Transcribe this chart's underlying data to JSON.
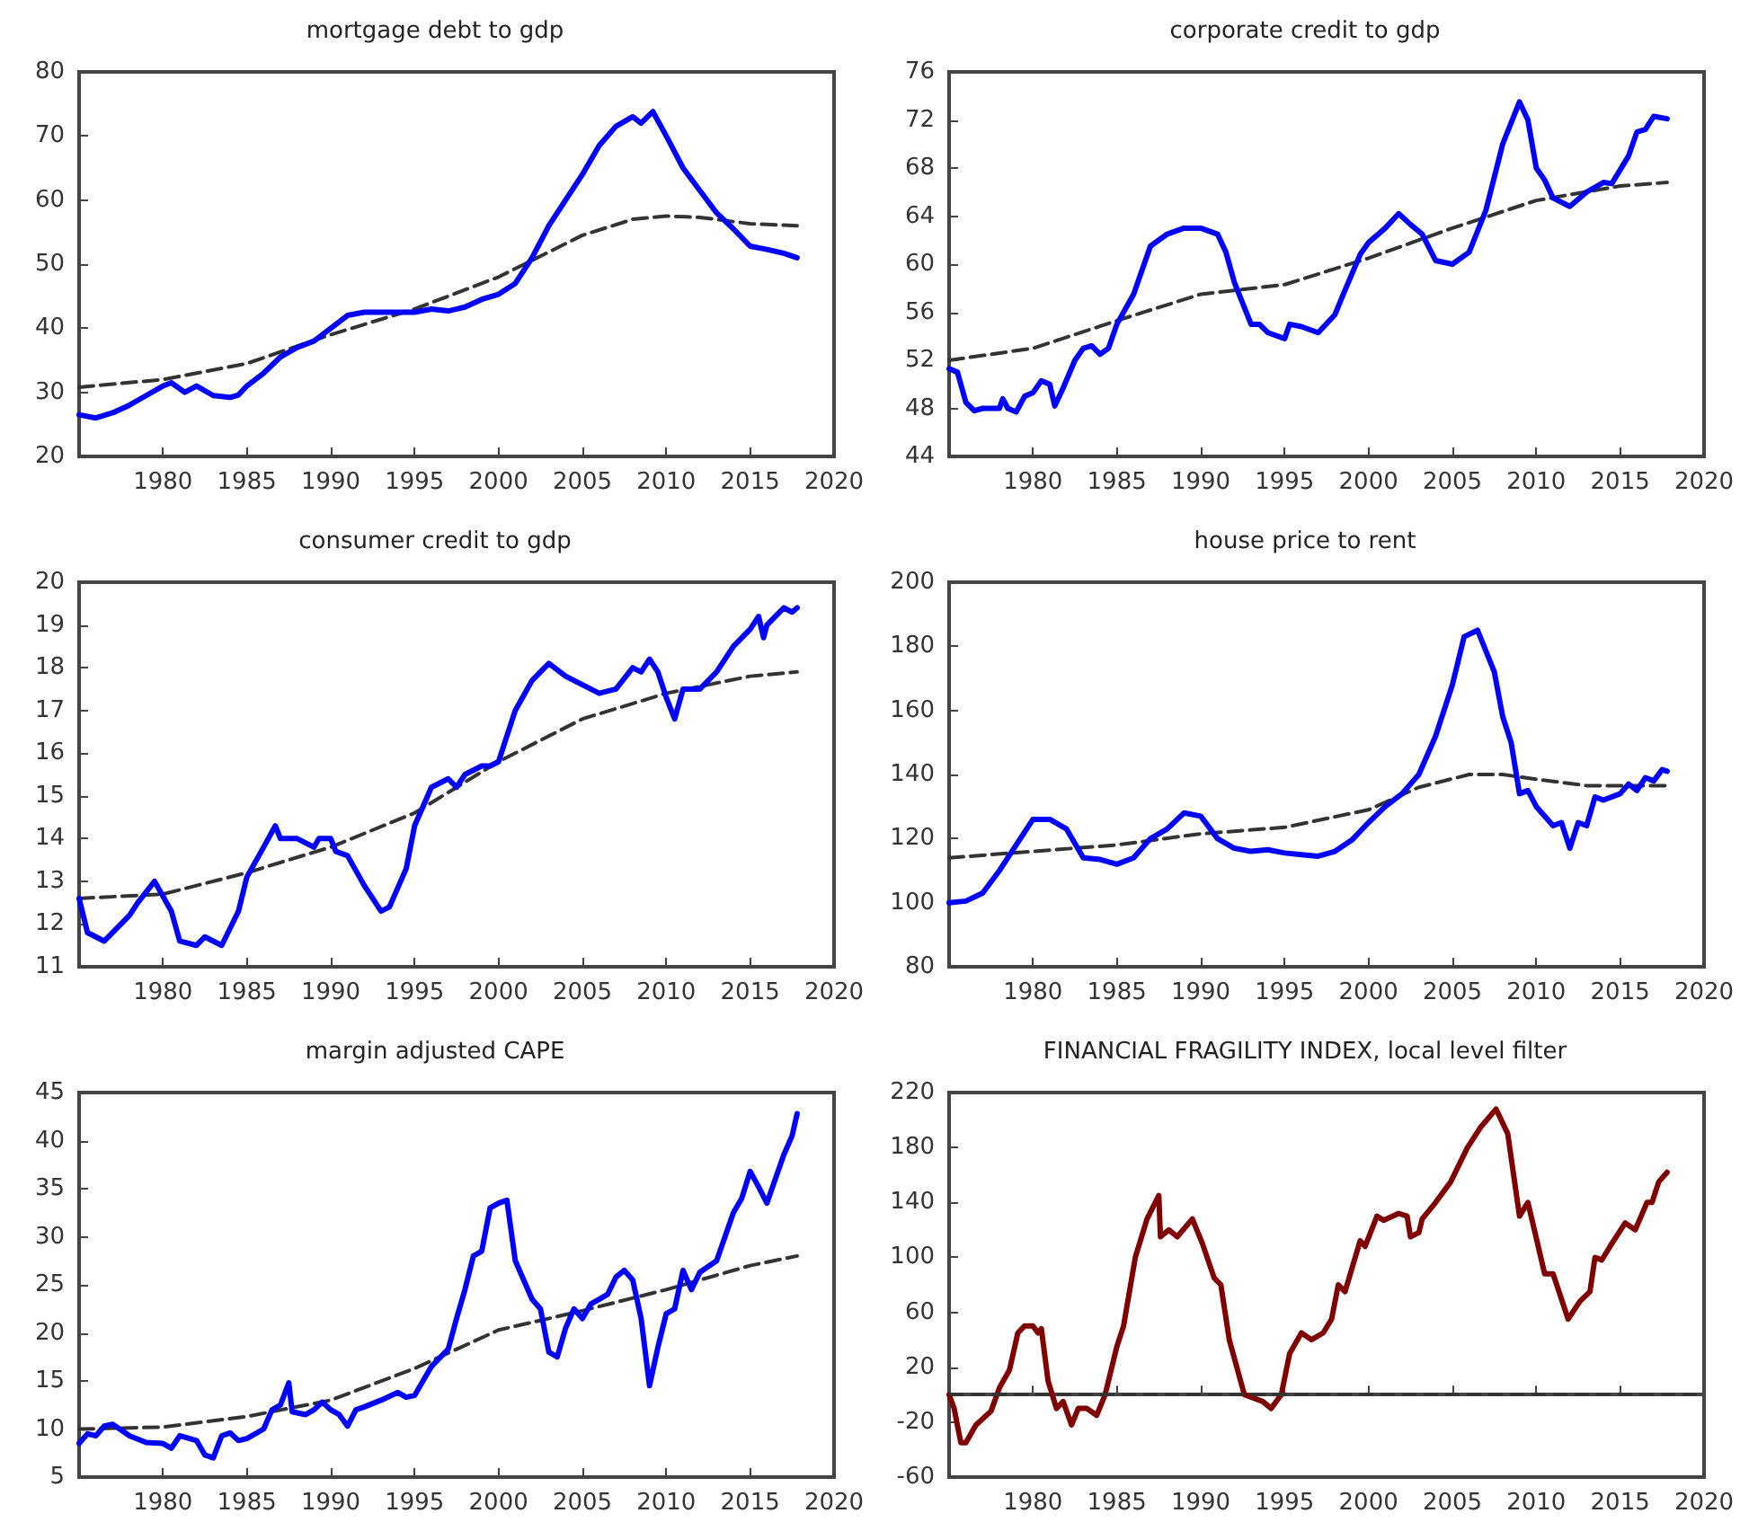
{
  "chart_data": [
    {
      "type": "line",
      "title": "mortgage debt to gdp",
      "xlim": [
        1975,
        2020
      ],
      "xticks": [
        1980,
        1985,
        1990,
        1995,
        2000,
        2005,
        2010,
        2015,
        2020
      ],
      "ylim": [
        20,
        80
      ],
      "yticks": [
        20,
        30,
        40,
        50,
        60,
        70,
        80
      ],
      "marker": "none",
      "series": [
        {
          "color": "#0000ff",
          "line_style": "solid",
          "x": [
            1975,
            1976,
            1977,
            1978,
            1979,
            1980,
            1980.5,
            1981.3,
            1982,
            1983,
            1984,
            1984.5,
            1985,
            1986,
            1987,
            1988,
            1989,
            1990,
            1991,
            1992,
            1993,
            1994,
            1995,
            1996,
            1997,
            1998,
            1999,
            2000,
            2001,
            2002,
            2003,
            2004,
            2005,
            2006,
            2007,
            2008,
            2008.5,
            2009.2,
            2010,
            2011,
            2012,
            2013,
            2014,
            2015,
            2016,
            2017,
            2017.8
          ],
          "values": [
            26.5,
            26,
            26.8,
            28,
            29.5,
            31,
            31.5,
            30,
            31,
            29.5,
            29.2,
            29.6,
            31,
            33,
            35.5,
            37,
            38,
            40,
            42,
            42.5,
            42.5,
            42.5,
            42.5,
            43,
            42.7,
            43.3,
            44.5,
            45.3,
            47,
            51,
            56,
            60,
            64,
            68.5,
            71.5,
            73,
            72,
            73.8,
            70,
            65,
            61.5,
            58,
            55.5,
            52.8,
            52.3,
            51.7,
            51
          ]
        },
        {
          "color": "#333333",
          "line_style": "dashed",
          "x": [
            1975,
            1980,
            1985,
            1990,
            1995,
            2000,
            2005,
            2008,
            2010,
            2012,
            2015,
            2017.8
          ],
          "values": [
            30.8,
            32,
            34.5,
            39,
            43,
            48,
            54.5,
            57,
            57.5,
            57.3,
            56.3,
            56
          ]
        }
      ]
    },
    {
      "type": "line",
      "title": "corporate credit to gdp",
      "xlim": [
        1975,
        2020
      ],
      "xticks": [
        1980,
        1985,
        1990,
        1995,
        2000,
        2005,
        2010,
        2015,
        2020
      ],
      "ylim": [
        44,
        76
      ],
      "yticks": [
        44,
        48,
        52,
        56,
        60,
        64,
        68,
        72,
        76
      ],
      "marker": "none",
      "series": [
        {
          "color": "#0000ff",
          "line_style": "solid",
          "x": [
            1975,
            1975.5,
            1976,
            1976.5,
            1977,
            1978,
            1978.2,
            1978.5,
            1979,
            1979.5,
            1980,
            1980.5,
            1981,
            1981.3,
            1981.8,
            1982.5,
            1983,
            1983.5,
            1984,
            1984.5,
            1985,
            1986,
            1987,
            1987.5,
            1988,
            1989,
            1990,
            1991,
            1991.5,
            1992,
            1993,
            1993.5,
            1994,
            1995,
            1995.3,
            1996,
            1997,
            1998,
            1998.5,
            1999.5,
            2000,
            2001,
            2001.8,
            2002.5,
            2003.2,
            2004,
            2005,
            2006,
            2007,
            2008,
            2009,
            2009.5,
            2010,
            2010.5,
            2011,
            2012,
            2013,
            2014,
            2014.5,
            2015.5,
            2016,
            2016.5,
            2017,
            2017.8
          ],
          "values": [
            51.3,
            51,
            48.5,
            47.8,
            48,
            48,
            48.8,
            48,
            47.7,
            49,
            49.3,
            50.3,
            50,
            48.2,
            49.7,
            52,
            53,
            53.2,
            52.5,
            53,
            55,
            57.5,
            61.5,
            62,
            62.5,
            63,
            63,
            62.5,
            61,
            58.5,
            55,
            55,
            54.3,
            53.8,
            55,
            54.8,
            54.3,
            55.8,
            57.5,
            60.8,
            61.8,
            63,
            64.2,
            63.3,
            62.5,
            60.3,
            60,
            61,
            64.5,
            70,
            73.5,
            72,
            68,
            67,
            65.5,
            64.8,
            66,
            66.8,
            66.7,
            69,
            71,
            71.2,
            72.3,
            72.1
          ]
        },
        {
          "color": "#333333",
          "line_style": "dashed",
          "x": [
            1975,
            1980,
            1985,
            1990,
            1995,
            2000,
            2005,
            2010,
            2015,
            2017.8
          ],
          "values": [
            52,
            53,
            55.3,
            57.5,
            58.3,
            60.5,
            63,
            65.3,
            66.5,
            66.8
          ]
        }
      ]
    },
    {
      "type": "line",
      "title": "consumer credit to gdp",
      "xlim": [
        1975,
        2020
      ],
      "xticks": [
        1980,
        1985,
        1990,
        1995,
        2000,
        2005,
        2010,
        2015,
        2020
      ],
      "ylim": [
        11,
        20
      ],
      "yticks": [
        11,
        12,
        13,
        14,
        15,
        16,
        17,
        18,
        19,
        20
      ],
      "marker": "none",
      "series": [
        {
          "color": "#0000ff",
          "line_style": "solid",
          "x": [
            1975,
            1975.5,
            1976.5,
            1978,
            1978.5,
            1979.5,
            1980.5,
            1981,
            1982,
            1982.5,
            1983.5,
            1984.5,
            1985,
            1986,
            1986.7,
            1987,
            1988,
            1989,
            1989.3,
            1990,
            1990.3,
            1991,
            1992,
            1993,
            1993.5,
            1994.5,
            1995,
            1996,
            1997,
            1997.5,
            1998,
            1999,
            1999.5,
            2000,
            2001,
            2002,
            2003,
            2004,
            2005,
            2006,
            2007,
            2008,
            2008.5,
            2009,
            2009.5,
            2010,
            2010.5,
            2011,
            2012,
            2013,
            2014,
            2015,
            2015.5,
            2015.8,
            2016,
            2017,
            2017.5,
            2017.8
          ],
          "values": [
            12.6,
            11.8,
            11.6,
            12.2,
            12.5,
            13,
            12.3,
            11.6,
            11.5,
            11.7,
            11.5,
            12.3,
            13.1,
            13.8,
            14.3,
            14,
            14,
            13.8,
            14,
            14,
            13.7,
            13.6,
            12.9,
            12.3,
            12.4,
            13.3,
            14.3,
            15.2,
            15.4,
            15.2,
            15.5,
            15.7,
            15.7,
            15.8,
            17,
            17.7,
            18.1,
            17.8,
            17.6,
            17.4,
            17.5,
            18,
            17.9,
            18.2,
            17.9,
            17.3,
            16.8,
            17.5,
            17.5,
            17.9,
            18.5,
            18.9,
            19.2,
            18.7,
            19,
            19.4,
            19.3,
            19.4
          ]
        },
        {
          "color": "#333333",
          "line_style": "dashed",
          "x": [
            1975,
            1980,
            1985,
            1990,
            1995,
            2000,
            2005,
            2010,
            2015,
            2017.8
          ],
          "values": [
            12.6,
            12.7,
            13.2,
            13.8,
            14.6,
            15.8,
            16.8,
            17.4,
            17.8,
            17.9
          ]
        }
      ]
    },
    {
      "type": "line",
      "title": "house price to rent",
      "xlim": [
        1975,
        2020
      ],
      "xticks": [
        1980,
        1985,
        1990,
        1995,
        2000,
        2005,
        2010,
        2015,
        2020
      ],
      "ylim": [
        80,
        200
      ],
      "yticks": [
        80,
        100,
        120,
        140,
        160,
        180,
        200
      ],
      "marker": "none",
      "series": [
        {
          "color": "#0000ff",
          "line_style": "solid",
          "x": [
            1975,
            1976,
            1977,
            1978,
            1979,
            1980,
            1981,
            1982,
            1983,
            1984,
            1985,
            1986,
            1987,
            1988,
            1989,
            1990,
            1991,
            1992,
            1993,
            1994,
            1995,
            1996,
            1997,
            1998,
            1999,
            2000,
            2001,
            2002,
            2003,
            2004,
            2005,
            2005.7,
            2006.5,
            2007.5,
            2008,
            2008.5,
            2009,
            2009.5,
            2010,
            2011,
            2011.5,
            2012,
            2012.5,
            2013,
            2013.5,
            2014,
            2015,
            2015.5,
            2016,
            2016.5,
            2017,
            2017.5,
            2017.8
          ],
          "values": [
            100,
            100.5,
            103,
            110,
            118,
            126,
            126,
            123,
            114,
            113.5,
            112,
            114,
            120,
            123,
            128,
            127,
            120,
            117,
            116,
            116.5,
            115.5,
            115,
            114.5,
            116,
            119.5,
            125,
            130,
            134,
            140,
            152,
            168,
            183,
            185,
            172,
            158,
            150,
            134,
            135,
            130,
            124,
            125,
            117,
            125,
            124,
            133,
            132,
            134,
            137,
            135,
            139,
            138,
            141.5,
            141
          ]
        },
        {
          "color": "#333333",
          "line_style": "dashed",
          "x": [
            1975,
            1980,
            1985,
            1990,
            1995,
            2000,
            2003,
            2006,
            2008,
            2010,
            2013,
            2017.8
          ],
          "values": [
            114,
            116,
            118,
            121.5,
            123.5,
            129,
            136,
            140,
            140,
            138.5,
            136.5,
            136.5
          ]
        }
      ]
    },
    {
      "type": "line",
      "title": "margin adjusted CAPE",
      "xlim": [
        1975,
        2020
      ],
      "xticks": [
        1980,
        1985,
        1990,
        1995,
        2000,
        2005,
        2010,
        2015,
        2020
      ],
      "ylim": [
        5,
        45
      ],
      "yticks": [
        5,
        10,
        15,
        20,
        25,
        30,
        35,
        40,
        45
      ],
      "marker": "none",
      "series": [
        {
          "color": "#0000ff",
          "line_style": "solid",
          "x": [
            1975,
            1975.5,
            1976,
            1976.5,
            1977,
            1978,
            1979,
            1980,
            1980.5,
            1981,
            1982,
            1982.5,
            1983,
            1983.5,
            1984,
            1984.5,
            1985,
            1986,
            1986.5,
            1987,
            1987.5,
            1987.7,
            1988.5,
            1989,
            1989.5,
            1990,
            1990.5,
            1991,
            1991.5,
            1992,
            1993,
            1994,
            1994.5,
            1995,
            1996,
            1997,
            1997.5,
            1998,
            1998.5,
            1999,
            1999.5,
            2000,
            2000.5,
            2001,
            2002,
            2002.5,
            2003,
            2003.5,
            2004,
            2004.5,
            2005,
            2005.5,
            2006,
            2006.5,
            2007,
            2007.5,
            2008,
            2008.5,
            2009,
            2009.5,
            2010,
            2010.5,
            2011,
            2011.5,
            2012,
            2013,
            2014,
            2014.5,
            2015,
            2015.5,
            2016,
            2016.5,
            2017,
            2017.5,
            2017.8
          ],
          "values": [
            8.5,
            9.5,
            9.3,
            10.3,
            10.5,
            9.3,
            8.6,
            8.5,
            8,
            9.3,
            8.8,
            7.3,
            7,
            9.3,
            9.6,
            8.8,
            9,
            10,
            12,
            12.5,
            14.8,
            11.8,
            11.5,
            12,
            12.8,
            12,
            11.5,
            10.3,
            12,
            12.3,
            13,
            13.8,
            13.3,
            13.5,
            16.5,
            18.3,
            21.5,
            24.5,
            28,
            28.5,
            33,
            33.5,
            33.8,
            27.5,
            23.5,
            22.5,
            18,
            17.5,
            20.5,
            22.5,
            21.5,
            23,
            23.5,
            24,
            25.8,
            26.5,
            25.5,
            21.5,
            14.5,
            18.5,
            22,
            22.5,
            26.5,
            24.5,
            26.3,
            27.5,
            32.5,
            34,
            36.8,
            35.2,
            33.5,
            36,
            38.5,
            40.5,
            42.8
          ]
        },
        {
          "color": "#333333",
          "line_style": "dashed",
          "x": [
            1975,
            1980,
            1985,
            1990,
            1995,
            2000,
            2005,
            2010,
            2015,
            2017.8
          ],
          "values": [
            10,
            10.2,
            11.3,
            13,
            16.3,
            20.3,
            22.3,
            24.5,
            27,
            28
          ]
        }
      ]
    },
    {
      "type": "line",
      "title": "FINANCIAL FRAGILITY INDEX, local level filter",
      "xlim": [
        1975,
        2020
      ],
      "xticks": [
        1980,
        1985,
        1990,
        1995,
        2000,
        2005,
        2010,
        2015,
        2020
      ],
      "ylim": [
        -60,
        220
      ],
      "yticks": [
        -60,
        -20,
        20,
        60,
        100,
        140,
        180,
        220
      ],
      "marker": "none",
      "ref_lines": [
        {
          "axis": "y",
          "value": 0,
          "color": "#333333",
          "line_style": "dashed"
        }
      ],
      "series": [
        {
          "color": "#800000",
          "line_style": "solid",
          "x": [
            1975,
            1975.3,
            1975.7,
            1976,
            1976.6,
            1977.5,
            1978,
            1978.6,
            1979.1,
            1979.5,
            1980,
            1980.3,
            1980.5,
            1980.9,
            1981.4,
            1981.8,
            1982.3,
            1982.7,
            1983.2,
            1983.8,
            1984.3,
            1985,
            1985.4,
            1986.1,
            1986.8,
            1987.5,
            1987.6,
            1988.1,
            1988.6,
            1989.5,
            1990.1,
            1990.8,
            1991.2,
            1991.7,
            1992.6,
            1993.7,
            1994.2,
            1994.8,
            1995.3,
            1996,
            1996.6,
            1997.3,
            1997.8,
            1998.2,
            1998.6,
            1999.5,
            1999.8,
            2000.5,
            2000.9,
            2001.8,
            2002.3,
            2002.5,
            2003,
            2003.2,
            2004,
            2004.9,
            2005.9,
            2006.7,
            2007.6,
            2008.3,
            2009,
            2009.5,
            2010.5,
            2011,
            2011.9,
            2012.6,
            2013.2,
            2013.5,
            2013.9,
            2014.4,
            2015.3,
            2015.9,
            2016.6,
            2016.9,
            2017.3,
            2017.8
          ],
          "values": [
            0,
            -10,
            -35,
            -35,
            -22,
            -12,
            5,
            18,
            45,
            50,
            50,
            45,
            48,
            10,
            -10,
            -5,
            -22,
            -10,
            -10,
            -15,
            0,
            35,
            50,
            100,
            128,
            145,
            115,
            120,
            115,
            128,
            110,
            85,
            80,
            40,
            0,
            -5,
            -10,
            0,
            30,
            45,
            40,
            45,
            55,
            80,
            75,
            112,
            108,
            130,
            127,
            132,
            130,
            115,
            118,
            128,
            140,
            155,
            180,
            195,
            208,
            190,
            130,
            140,
            88,
            88,
            55,
            68,
            75,
            100,
            98,
            108,
            125,
            120,
            140,
            140,
            155,
            162
          ]
        }
      ]
    }
  ]
}
